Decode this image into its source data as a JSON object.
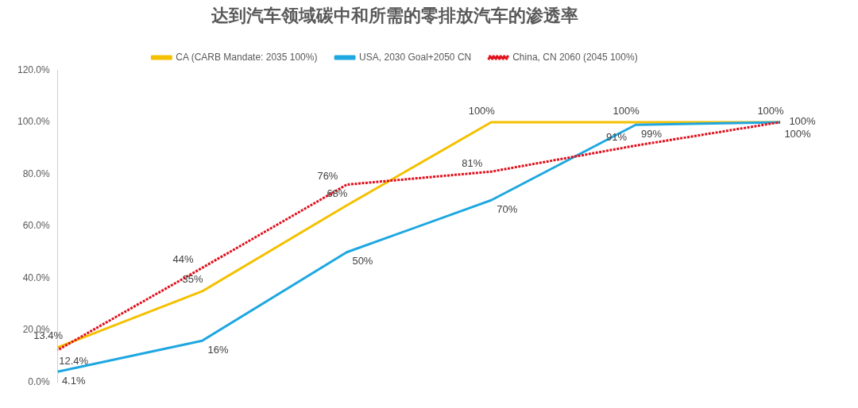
{
  "chart_data": {
    "type": "line",
    "title": "达到汽车领域碳中和所需的零排放汽车的渗透率",
    "categories": [
      null,
      null,
      null,
      null,
      null,
      null
    ],
    "series": [
      {
        "name": "CA (CARB Mandate: 2035 100%)",
        "color": "#f5c000",
        "line_style": "solid",
        "values": [
          13.4,
          35,
          68,
          100,
          100,
          100
        ],
        "value_labels": [
          "13.4%",
          "35%",
          "68%",
          "100%",
          "100%",
          "100%"
        ]
      },
      {
        "name": "USA, 2030 Goal+2050 CN",
        "color": "#1ea7e0",
        "line_style": "solid",
        "values": [
          4.1,
          16,
          50,
          70,
          99,
          100
        ],
        "value_labels": [
          "4.1%",
          "16%",
          "50%",
          "70%",
          "99%",
          "100%"
        ]
      },
      {
        "name": "China, CN 2060 (2045 100%)",
        "color": "#e0101c",
        "line_style": "dotted",
        "values": [
          12.4,
          44,
          76,
          81,
          91,
          100
        ],
        "value_labels": [
          "12.4%",
          "44%",
          "76%",
          "81%",
          "91%",
          "100%"
        ]
      }
    ],
    "ylim": [
      0,
      120
    ],
    "yticks": [
      {
        "value": 0,
        "label": "0.0%"
      },
      {
        "value": 20,
        "label": "20.0%"
      },
      {
        "value": 40,
        "label": "40.0%"
      },
      {
        "value": 60,
        "label": "60.0%"
      },
      {
        "value": 80,
        "label": "80.0%"
      },
      {
        "value": 100,
        "label": "100.0%"
      },
      {
        "value": 120,
        "label": "120.0%"
      }
    ],
    "grid": false,
    "legend": "top",
    "marker": "none"
  }
}
